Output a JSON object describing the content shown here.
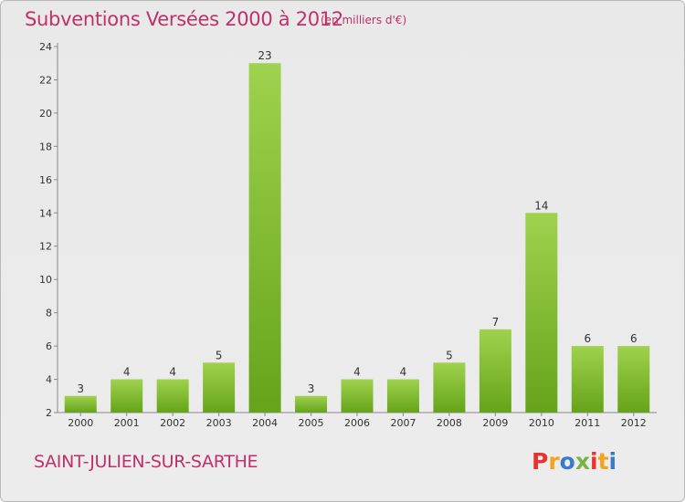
{
  "header": {
    "title": "Subventions Versées 2000 à 2012",
    "subtitle": "(en milliers d'€)"
  },
  "footer": {
    "commune": "SAINT-JULIEN-SUR-SARTHE",
    "logo_text": "Proxiti"
  },
  "colors": {
    "title": "#c0306a",
    "bar_light": "#9fd24e",
    "bar_dark": "#65a31a",
    "logo_letters": [
      "#e8322e",
      "#f4a31b",
      "#3a7bc8",
      "#7cb342",
      "#e8322e",
      "#f4a31b",
      "#3a7bc8"
    ]
  },
  "chart_data": {
    "type": "bar",
    "categories": [
      "2000",
      "2001",
      "2002",
      "2003",
      "2004",
      "2005",
      "2006",
      "2007",
      "2008",
      "2009",
      "2010",
      "2011",
      "2012"
    ],
    "values": [
      3,
      4,
      4,
      5,
      23,
      3,
      4,
      4,
      5,
      7,
      14,
      6,
      6
    ],
    "ylim": [
      2,
      24
    ],
    "yticks": [
      2,
      4,
      6,
      8,
      10,
      12,
      14,
      16,
      18,
      20,
      22,
      24
    ],
    "grid": false,
    "legend": "none"
  }
}
